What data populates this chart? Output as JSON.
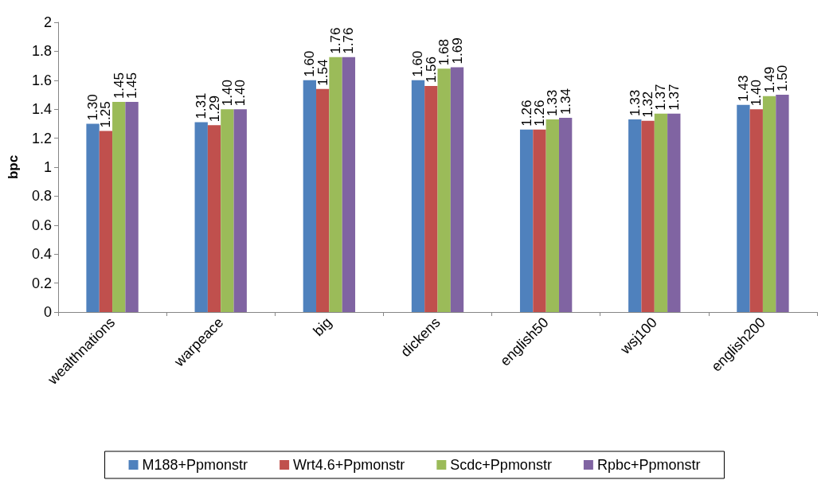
{
  "chart_data": {
    "type": "bar",
    "ylabel": "bpc",
    "categories": [
      "wealthnations",
      "warpeace",
      "big",
      "dickens",
      "english50",
      "wsj100",
      "english200"
    ],
    "series": [
      {
        "name": "M188+Ppmonstr",
        "color": "#4f81bd",
        "values": [
          1.3,
          1.31,
          1.6,
          1.6,
          1.26,
          1.33,
          1.43
        ],
        "value_labels": [
          "1.30",
          "1.31",
          "1.60",
          "1.60",
          "1.26",
          "1.33",
          "1.43"
        ]
      },
      {
        "name": "Wrt4.6+Ppmonstr",
        "color": "#c0504d",
        "values": [
          1.25,
          1.29,
          1.54,
          1.56,
          1.26,
          1.32,
          1.4
        ],
        "value_labels": [
          "1.25",
          "1.29",
          "1.54",
          "1.56",
          "1.26",
          "1.32",
          "1.40"
        ]
      },
      {
        "name": "Scdc+Ppmonstr",
        "color": "#9bbb59",
        "values": [
          1.45,
          1.4,
          1.76,
          1.68,
          1.33,
          1.37,
          1.49
        ],
        "value_labels": [
          "1.45",
          "1.40",
          "1.76",
          "1.68",
          "1.33",
          "1.37",
          "1.49"
        ]
      },
      {
        "name": "Rpbc+Ppmonstr",
        "color": "#8064a2",
        "values": [
          1.45,
          1.4,
          1.76,
          1.69,
          1.34,
          1.37,
          1.5
        ],
        "value_labels": [
          "1.45",
          "1.40",
          "1.76",
          "1.69",
          "1.34",
          "1.37",
          "1.50"
        ]
      }
    ],
    "ylim": [
      0,
      2
    ],
    "yticks": [
      0,
      0.2,
      0.4,
      0.6,
      0.8,
      1,
      1.2,
      1.4,
      1.6,
      1.8,
      2
    ],
    "grid": false,
    "legend": "bottom"
  }
}
